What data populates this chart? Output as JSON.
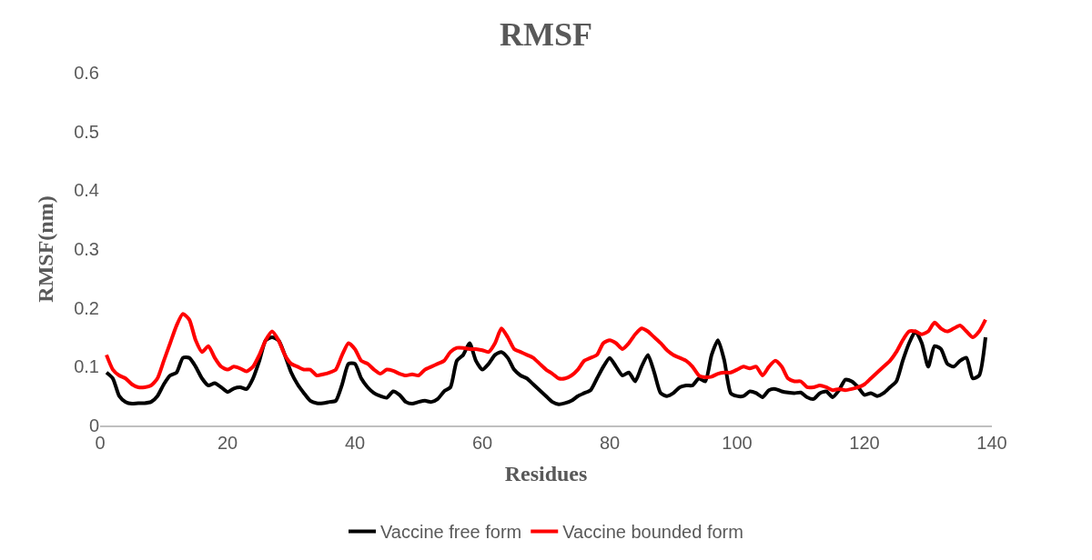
{
  "chart_data": {
    "type": "line",
    "title": "RMSF",
    "xlabel": "Residues",
    "ylabel": "RMSF(nm)",
    "x": [
      1,
      2,
      3,
      4,
      5,
      6,
      7,
      8,
      9,
      10,
      11,
      12,
      13,
      14,
      15,
      16,
      17,
      18,
      19,
      20,
      21,
      22,
      23,
      24,
      25,
      26,
      27,
      28,
      29,
      30,
      31,
      32,
      33,
      34,
      35,
      36,
      37,
      38,
      39,
      40,
      41,
      42,
      43,
      44,
      45,
      46,
      47,
      48,
      49,
      50,
      51,
      52,
      53,
      54,
      55,
      56,
      57,
      58,
      59,
      60,
      61,
      62,
      63,
      64,
      65,
      66,
      67,
      68,
      69,
      70,
      71,
      72,
      73,
      74,
      75,
      76,
      77,
      78,
      79,
      80,
      81,
      82,
      83,
      84,
      85,
      86,
      87,
      88,
      89,
      90,
      91,
      92,
      93,
      94,
      95,
      96,
      97,
      98,
      99,
      100,
      101,
      102,
      103,
      104,
      105,
      106,
      107,
      108,
      109,
      110,
      111,
      112,
      113,
      114,
      115,
      116,
      117,
      118,
      119,
      120,
      121,
      122,
      123,
      124,
      125,
      126,
      127,
      128,
      129,
      130,
      131,
      132,
      133,
      134,
      135,
      136,
      137,
      138,
      139
    ],
    "series": [
      {
        "name": "Vaccine free form",
        "color": "#000000",
        "values": [
          0.09,
          0.08,
          0.05,
          0.04,
          0.037,
          0.038,
          0.038,
          0.04,
          0.05,
          0.07,
          0.085,
          0.09,
          0.115,
          0.115,
          0.1,
          0.08,
          0.068,
          0.072,
          0.065,
          0.057,
          0.063,
          0.065,
          0.062,
          0.08,
          0.11,
          0.145,
          0.15,
          0.145,
          0.12,
          0.09,
          0.07,
          0.055,
          0.042,
          0.038,
          0.038,
          0.04,
          0.042,
          0.07,
          0.105,
          0.105,
          0.08,
          0.065,
          0.055,
          0.05,
          0.047,
          0.058,
          0.052,
          0.04,
          0.037,
          0.04,
          0.042,
          0.04,
          0.045,
          0.058,
          0.065,
          0.11,
          0.12,
          0.14,
          0.11,
          0.095,
          0.105,
          0.12,
          0.125,
          0.115,
          0.095,
          0.085,
          0.08,
          0.07,
          0.06,
          0.05,
          0.04,
          0.036,
          0.038,
          0.042,
          0.05,
          0.055,
          0.06,
          0.08,
          0.1,
          0.115,
          0.1,
          0.085,
          0.09,
          0.075,
          0.1,
          0.12,
          0.09,
          0.055,
          0.05,
          0.055,
          0.065,
          0.068,
          0.068,
          0.08,
          0.075,
          0.12,
          0.145,
          0.11,
          0.055,
          0.05,
          0.05,
          0.058,
          0.055,
          0.048,
          0.06,
          0.062,
          0.058,
          0.056,
          0.055,
          0.056,
          0.048,
          0.045,
          0.055,
          0.058,
          0.048,
          0.06,
          0.078,
          0.075,
          0.065,
          0.052,
          0.055,
          0.05,
          0.055,
          0.065,
          0.075,
          0.11,
          0.14,
          0.16,
          0.14,
          0.1,
          0.135,
          0.13,
          0.105,
          0.1,
          0.11,
          0.115,
          0.08,
          0.085,
          0.15
        ]
      },
      {
        "name": "Vaccine bounded form",
        "color": "#ff0000",
        "values": [
          0.12,
          0.095,
          0.085,
          0.08,
          0.07,
          0.065,
          0.065,
          0.068,
          0.08,
          0.11,
          0.14,
          0.17,
          0.19,
          0.18,
          0.145,
          0.125,
          0.135,
          0.115,
          0.1,
          0.095,
          0.1,
          0.097,
          0.092,
          0.1,
          0.12,
          0.145,
          0.16,
          0.145,
          0.12,
          0.105,
          0.1,
          0.095,
          0.095,
          0.085,
          0.087,
          0.09,
          0.095,
          0.12,
          0.14,
          0.13,
          0.11,
          0.105,
          0.095,
          0.088,
          0.095,
          0.093,
          0.088,
          0.085,
          0.087,
          0.085,
          0.095,
          0.1,
          0.105,
          0.11,
          0.125,
          0.132,
          0.132,
          0.13,
          0.13,
          0.128,
          0.125,
          0.14,
          0.165,
          0.15,
          0.13,
          0.125,
          0.12,
          0.115,
          0.105,
          0.095,
          0.088,
          0.08,
          0.08,
          0.085,
          0.095,
          0.11,
          0.115,
          0.12,
          0.14,
          0.145,
          0.14,
          0.13,
          0.14,
          0.155,
          0.165,
          0.16,
          0.15,
          0.14,
          0.128,
          0.12,
          0.115,
          0.11,
          0.1,
          0.085,
          0.082,
          0.083,
          0.088,
          0.09,
          0.09,
          0.095,
          0.1,
          0.097,
          0.1,
          0.085,
          0.1,
          0.11,
          0.1,
          0.08,
          0.075,
          0.075,
          0.065,
          0.065,
          0.068,
          0.065,
          0.06,
          0.062,
          0.06,
          0.062,
          0.065,
          0.07,
          0.08,
          0.09,
          0.1,
          0.11,
          0.125,
          0.145,
          0.16,
          0.16,
          0.155,
          0.16,
          0.175,
          0.165,
          0.16,
          0.165,
          0.17,
          0.16,
          0.15,
          0.16,
          0.18
        ]
      }
    ],
    "xlim": [
      0,
      140
    ],
    "xticks": [
      0,
      20,
      40,
      60,
      80,
      100,
      120,
      140
    ],
    "ylim": [
      0,
      0.6
    ],
    "yticks": [
      0,
      0.1,
      0.2,
      0.3,
      0.4,
      0.5,
      0.6
    ],
    "grid": false,
    "legend": "bottom",
    "marker": "none",
    "line_style": "solid"
  }
}
